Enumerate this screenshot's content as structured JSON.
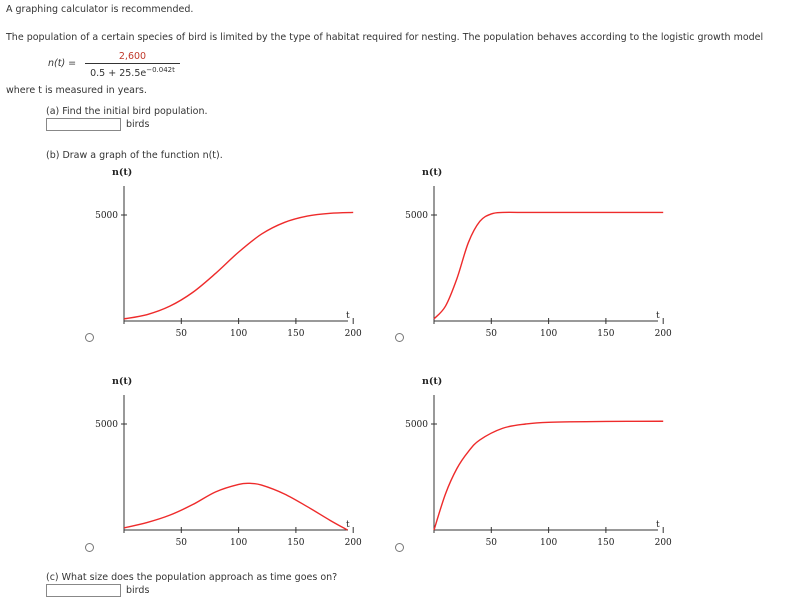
{
  "header": {
    "note": "A graphing calculator is recommended.",
    "intro": "The population of a certain species of bird is limited by the type of habitat required for nesting. The population behaves according to the logistic growth model",
    "formula": {
      "lhs": "n(t) =",
      "numerator": "2,600",
      "denominator_base": "0.5 + 25.5e",
      "denominator_exp": "−0.042t"
    },
    "where": "where t is measured in years."
  },
  "part_a": {
    "question": "(a) Find the initial bird population.",
    "value": "",
    "unit": "birds"
  },
  "part_b": {
    "question": "(b) Draw a graph of the function n(t)."
  },
  "part_c": {
    "question": "(c) What size does the population approach as time goes on?",
    "value": "",
    "unit": "birds"
  },
  "colors": {
    "curve": "#ee2b2b",
    "axis": "#333333",
    "fraction_numerator": "#c0392b"
  },
  "chart_data": [
    {
      "type": "line",
      "ylabel": "n(t)",
      "xlabel": "t",
      "x_ticks": [
        "50",
        "100",
        "150",
        "200"
      ],
      "y_ticks": [
        "5000"
      ],
      "xlim": [
        0,
        210
      ],
      "ylim": [
        0,
        6000
      ],
      "series": [
        {
          "x": [
            0,
            20,
            40,
            60,
            80,
            100,
            120,
            140,
            160,
            180,
            200
          ],
          "values": [
            100,
            300,
            700,
            1350,
            2250,
            3250,
            4100,
            4650,
            4950,
            5080,
            5120
          ]
        }
      ]
    },
    {
      "type": "line",
      "ylabel": "n(t)",
      "xlabel": "t",
      "x_ticks": [
        "50",
        "100",
        "150",
        "200"
      ],
      "y_ticks": [
        "5000"
      ],
      "xlim": [
        0,
        210
      ],
      "ylim": [
        0,
        6000
      ],
      "series": [
        {
          "x": [
            0,
            10,
            20,
            30,
            40,
            50,
            60,
            80,
            100,
            150,
            200
          ],
          "values": [
            100,
            700,
            2000,
            3700,
            4700,
            5050,
            5120,
            5120,
            5120,
            5120,
            5120
          ]
        }
      ]
    },
    {
      "type": "line",
      "ylabel": "n(t)",
      "xlabel": "t",
      "x_ticks": [
        "50",
        "100",
        "150",
        "200"
      ],
      "y_ticks": [
        "5000"
      ],
      "xlim": [
        0,
        210
      ],
      "ylim": [
        0,
        6000
      ],
      "series": [
        {
          "x": [
            0,
            20,
            40,
            60,
            80,
            100,
            110,
            120,
            140,
            160,
            180,
            195
          ],
          "values": [
            100,
            350,
            700,
            1200,
            1800,
            2150,
            2200,
            2120,
            1700,
            1100,
            450,
            0
          ]
        }
      ]
    },
    {
      "type": "line",
      "ylabel": "n(t)",
      "xlabel": "t",
      "x_ticks": [
        "50",
        "100",
        "150",
        "200"
      ],
      "y_ticks": [
        "5000"
      ],
      "xlim": [
        0,
        210
      ],
      "ylim": [
        0,
        6000
      ],
      "series": [
        {
          "x": [
            0,
            10,
            20,
            30,
            40,
            60,
            80,
            100,
            150,
            200
          ],
          "values": [
            0,
            1700,
            2900,
            3700,
            4250,
            4800,
            5000,
            5080,
            5120,
            5130
          ]
        }
      ]
    }
  ]
}
